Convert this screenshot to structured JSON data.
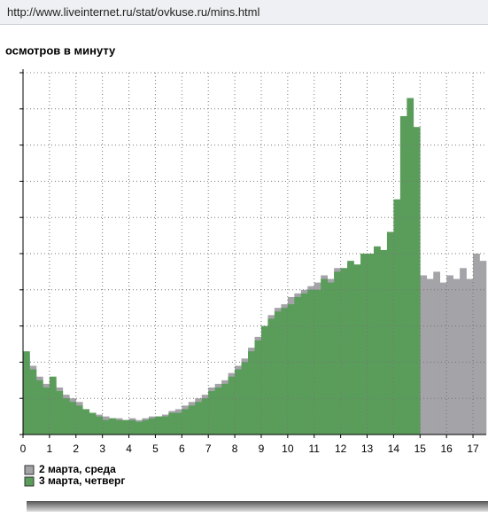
{
  "url": "http://www.liveinternet.ru/stat/ovkuse.ru/mins.html",
  "chart_data": {
    "type": "histogram",
    "title": "осмотров в минуту",
    "bins": [
      0,
      0.25,
      0.5,
      0.75,
      1,
      1.25,
      1.5,
      1.75,
      2,
      2.25,
      2.5,
      2.75,
      3,
      3.25,
      3.5,
      3.75,
      4,
      4.25,
      4.5,
      4.75,
      5,
      5.25,
      5.5,
      5.75,
      6,
      6.25,
      6.5,
      6.75,
      7,
      7.25,
      7.5,
      7.75,
      8,
      8.25,
      8.5,
      8.75,
      9,
      9.25,
      9.5,
      9.75,
      10,
      10.25,
      10.5,
      10.75,
      11,
      11.25,
      11.5,
      11.75,
      12,
      12.25,
      12.5,
      12.75,
      13,
      13.25,
      13.5,
      13.75,
      14,
      14.25,
      14.5,
      14.75,
      15,
      15.25,
      15.5,
      15.75,
      16,
      16.25,
      16.5,
      16.75,
      17,
      17.25,
      17.5
    ],
    "series": [
      {
        "name": "2 марта, среда",
        "color": "#a3a3a8",
        "values": [
          2.2,
          1.9,
          1.6,
          1.4,
          1.5,
          1.3,
          1.1,
          1.0,
          0.9,
          0.7,
          0.6,
          0.55,
          0.5,
          0.45,
          0.45,
          0.4,
          0.45,
          0.4,
          0.45,
          0.5,
          0.5,
          0.55,
          0.65,
          0.7,
          0.8,
          0.9,
          1.0,
          1.1,
          1.3,
          1.4,
          1.5,
          1.7,
          1.9,
          2.1,
          2.4,
          2.7,
          3.0,
          3.3,
          3.5,
          3.6,
          3.8,
          3.9,
          4.0,
          4.1,
          4.2,
          4.4,
          4.3,
          4.6,
          4.6,
          4.7,
          4.6,
          4.8,
          4.8,
          4.9,
          5.0,
          5.2,
          5.3,
          5.4,
          5.2,
          5.0,
          4.4,
          4.3,
          4.5,
          4.2,
          4.4,
          4.3,
          4.6,
          4.3,
          5.0,
          4.8
        ]
      },
      {
        "name": "3 марта, четверг",
        "color": "#5a9c5a",
        "values": [
          2.3,
          1.8,
          1.5,
          1.3,
          1.6,
          1.2,
          1.0,
          0.9,
          0.8,
          0.7,
          0.6,
          0.5,
          0.4,
          0.45,
          0.4,
          0.4,
          0.4,
          0.35,
          0.4,
          0.45,
          0.5,
          0.5,
          0.6,
          0.6,
          0.7,
          0.8,
          0.9,
          1.0,
          1.2,
          1.3,
          1.4,
          1.6,
          1.8,
          2.0,
          2.3,
          2.6,
          3.0,
          3.2,
          3.4,
          3.5,
          3.6,
          3.8,
          3.9,
          4.0,
          4.0,
          4.3,
          4.2,
          4.5,
          4.6,
          4.8,
          4.7,
          5.0,
          5.0,
          5.2,
          5.1,
          5.6,
          6.5,
          8.8,
          9.3,
          8.5,
          null,
          null,
          null,
          null,
          null,
          null,
          null,
          null,
          null,
          null
        ]
      }
    ],
    "xlim": [
      0,
      17.5
    ],
    "xticks": [
      0,
      1,
      2,
      3,
      4,
      5,
      6,
      7,
      8,
      9,
      10,
      11,
      12,
      13,
      14,
      15,
      16,
      17
    ],
    "ylim": [
      0,
      10
    ],
    "yticks": [
      0,
      1,
      2,
      3,
      4,
      5,
      6,
      7,
      8,
      9,
      10
    ],
    "grid": true
  }
}
